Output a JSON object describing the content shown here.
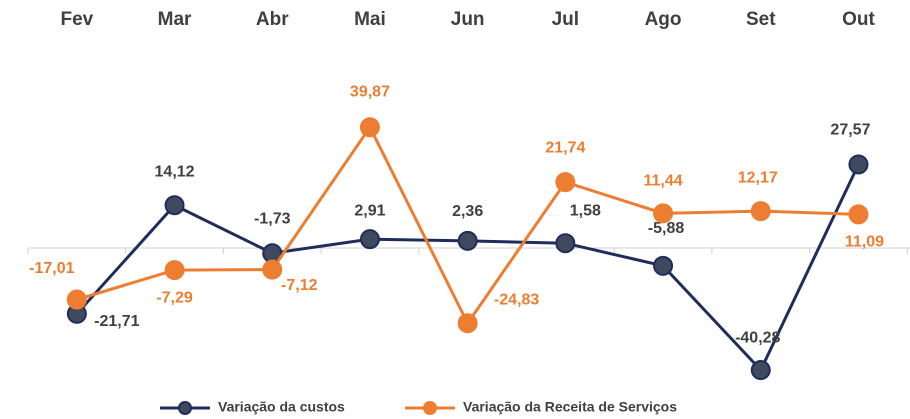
{
  "chart_data": {
    "type": "line",
    "categories": [
      "Fev",
      "Mar",
      "Abr",
      "Mai",
      "Jun",
      "Jul",
      "Ago",
      "Set",
      "Out"
    ],
    "series": [
      {
        "name": "Variação da custos",
        "color": "#1f2d5c",
        "label_color": "#404040",
        "values": [
          -21.71,
          14.12,
          -1.73,
          2.91,
          2.36,
          1.58,
          -5.88,
          -40.28,
          27.57
        ],
        "value_labels": [
          "-21,71",
          "14,12",
          "-1,73",
          "2,91",
          "2,36",
          "1,58",
          "-5,88",
          "-40,28",
          "27,57"
        ]
      },
      {
        "name": "Variação da Receita de Serviços",
        "color": "#ed7d31",
        "label_color": "#ed7d31",
        "values": [
          -17.01,
          -7.29,
          -7.12,
          39.87,
          -24.83,
          21.74,
          11.44,
          12.17,
          11.09
        ],
        "value_labels": [
          "-17,01",
          "-7,29",
          "-7,12",
          "39,87",
          "-24,83",
          "21,74",
          "11,44",
          "12,17",
          "11,09"
        ]
      }
    ],
    "ylim": [
      -50,
      50
    ]
  }
}
